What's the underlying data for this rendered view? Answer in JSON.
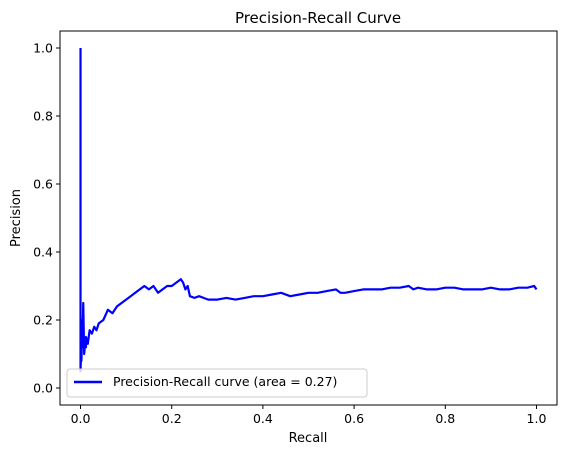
{
  "chart_data": {
    "type": "line",
    "title": "Precision-Recall Curve",
    "xlabel": "Recall",
    "ylabel": "Precision",
    "xlim": [
      -0.045,
      1.045
    ],
    "ylim": [
      -0.05,
      1.05
    ],
    "xticks": [
      0.0,
      0.2,
      0.4,
      0.6,
      0.8,
      1.0
    ],
    "xtick_labels": [
      "0.0",
      "0.2",
      "0.4",
      "0.6",
      "0.8",
      "1.0"
    ],
    "yticks": [
      0.0,
      0.2,
      0.4,
      0.6,
      0.8,
      1.0
    ],
    "ytick_labels": [
      "0.0",
      "0.2",
      "0.4",
      "0.6",
      "0.8",
      "1.0"
    ],
    "grid": false,
    "legend_placement": "lower-left",
    "series": [
      {
        "name": "Precision-Recall curve (area = 0.27)",
        "color": "#0000ff",
        "x": [
          0.0,
          0.0,
          0.002,
          0.002,
          0.004,
          0.004,
          0.006,
          0.008,
          0.01,
          0.012,
          0.012,
          0.014,
          0.016,
          0.02,
          0.025,
          0.03,
          0.035,
          0.04,
          0.05,
          0.06,
          0.07,
          0.08,
          0.09,
          0.1,
          0.11,
          0.12,
          0.13,
          0.14,
          0.15,
          0.16,
          0.17,
          0.18,
          0.19,
          0.2,
          0.21,
          0.22,
          0.225,
          0.23,
          0.235,
          0.24,
          0.25,
          0.26,
          0.27,
          0.28,
          0.3,
          0.32,
          0.34,
          0.36,
          0.38,
          0.4,
          0.42,
          0.44,
          0.46,
          0.48,
          0.5,
          0.52,
          0.54,
          0.56,
          0.57,
          0.58,
          0.6,
          0.62,
          0.64,
          0.66,
          0.68,
          0.7,
          0.72,
          0.73,
          0.74,
          0.76,
          0.78,
          0.8,
          0.82,
          0.84,
          0.86,
          0.88,
          0.9,
          0.92,
          0.94,
          0.96,
          0.98,
          0.995,
          1.0
        ],
        "y": [
          1.0,
          0.05,
          0.14,
          0.08,
          0.2,
          0.12,
          0.25,
          0.1,
          0.13,
          0.12,
          0.15,
          0.14,
          0.13,
          0.17,
          0.16,
          0.18,
          0.17,
          0.19,
          0.2,
          0.23,
          0.22,
          0.24,
          0.25,
          0.26,
          0.27,
          0.28,
          0.29,
          0.3,
          0.29,
          0.3,
          0.28,
          0.29,
          0.3,
          0.3,
          0.31,
          0.32,
          0.31,
          0.29,
          0.3,
          0.27,
          0.265,
          0.27,
          0.265,
          0.26,
          0.26,
          0.265,
          0.26,
          0.265,
          0.27,
          0.27,
          0.275,
          0.28,
          0.27,
          0.275,
          0.28,
          0.28,
          0.285,
          0.29,
          0.28,
          0.28,
          0.285,
          0.29,
          0.29,
          0.29,
          0.295,
          0.295,
          0.3,
          0.29,
          0.295,
          0.29,
          0.29,
          0.295,
          0.295,
          0.29,
          0.29,
          0.29,
          0.295,
          0.29,
          0.29,
          0.295,
          0.295,
          0.3,
          0.29
        ]
      }
    ]
  }
}
